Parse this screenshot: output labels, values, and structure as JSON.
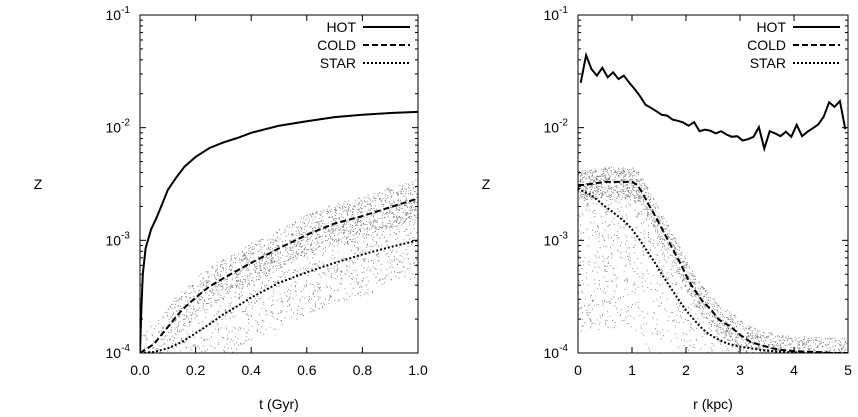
{
  "chart_data": [
    {
      "type": "line",
      "xlabel": "t (Gyr)",
      "ylabel": "Z",
      "xlim": [
        0.0,
        1.0
      ],
      "ylim": [
        0.0001,
        0.1
      ],
      "yscale": "log",
      "grid": false,
      "legend": "top-right",
      "xticks": [
        "0.0",
        "0.2",
        "0.4",
        "0.6",
        "0.8",
        "1.0"
      ],
      "yticks": [
        {
          "value": 0.1,
          "mantissa": "10",
          "exponent": "-1"
        },
        {
          "value": 0.01,
          "mantissa": "10",
          "exponent": "-2"
        },
        {
          "value": 0.001,
          "mantissa": "10",
          "exponent": "-3"
        },
        {
          "value": 0.0001,
          "mantissa": "10",
          "exponent": "-4"
        }
      ],
      "series": [
        {
          "name": "HOT",
          "style": "solid",
          "x": [
            0.0,
            0.005,
            0.01,
            0.02,
            0.04,
            0.06,
            0.08,
            0.1,
            0.13,
            0.16,
            0.2,
            0.25,
            0.3,
            0.35,
            0.4,
            0.5,
            0.6,
            0.7,
            0.8,
            0.9,
            1.0
          ],
          "y": [
            0.0001,
            0.00025,
            0.0005,
            0.00085,
            0.00125,
            0.0016,
            0.0021,
            0.0028,
            0.0036,
            0.0045,
            0.0055,
            0.0066,
            0.0074,
            0.0081,
            0.009,
            0.0104,
            0.0114,
            0.0124,
            0.013,
            0.0135,
            0.0138
          ]
        },
        {
          "name": "COLD",
          "style": "dashed",
          "x": [
            0.0,
            0.05,
            0.1,
            0.15,
            0.2,
            0.25,
            0.3,
            0.35,
            0.4,
            0.5,
            0.6,
            0.7,
            0.8,
            0.9,
            1.0
          ],
          "y": [
            0.0001,
            0.00012,
            0.00017,
            0.00024,
            0.00031,
            0.00039,
            0.00046,
            0.00054,
            0.00063,
            0.00085,
            0.00112,
            0.00141,
            0.00164,
            0.00197,
            0.00235
          ]
        },
        {
          "name": "STAR",
          "style": "dotted",
          "x": [
            0.0,
            0.05,
            0.1,
            0.15,
            0.2,
            0.25,
            0.3,
            0.35,
            0.4,
            0.5,
            0.6,
            0.7,
            0.8,
            0.9,
            1.0
          ],
          "y": [
            0.0001,
            0.000102,
            0.00011,
            0.000125,
            0.00015,
            0.00018,
            0.00022,
            0.00026,
            0.00031,
            0.00042,
            0.00052,
            0.00063,
            0.00075,
            0.00087,
            0.001
          ]
        }
      ],
      "scatter_band": {
        "name": "particles",
        "trend": "COLD",
        "upper_offset_dex": 0.2,
        "lower_offset_dex": -0.7
      }
    },
    {
      "type": "line",
      "xlabel": "r (kpc)",
      "ylabel": "Z",
      "xlim": [
        0,
        5
      ],
      "ylim": [
        0.0001,
        0.1
      ],
      "yscale": "log",
      "grid": false,
      "legend": "top-right",
      "xticks": [
        "0",
        "1",
        "2",
        "3",
        "4",
        "5"
      ],
      "yticks": [
        {
          "value": 0.1,
          "mantissa": "10",
          "exponent": "-1"
        },
        {
          "value": 0.01,
          "mantissa": "10",
          "exponent": "-2"
        },
        {
          "value": 0.001,
          "mantissa": "10",
          "exponent": "-3"
        },
        {
          "value": 0.0001,
          "mantissa": "10",
          "exponent": "-4"
        }
      ],
      "series": [
        {
          "name": "HOT",
          "style": "solid",
          "x": [
            0.05,
            0.15,
            0.25,
            0.35,
            0.45,
            0.55,
            0.65,
            0.75,
            0.85,
            0.95,
            1.05,
            1.15,
            1.25,
            1.35,
            1.45,
            1.55,
            1.65,
            1.75,
            1.85,
            1.95,
            2.05,
            2.15,
            2.25,
            2.35,
            2.45,
            2.55,
            2.65,
            2.75,
            2.85,
            2.95,
            3.05,
            3.15,
            3.25,
            3.35,
            3.45,
            3.55,
            3.65,
            3.75,
            3.85,
            3.95,
            4.05,
            4.15,
            4.25,
            4.35,
            4.45,
            4.55,
            4.65,
            4.75,
            4.85,
            4.95
          ],
          "y": [
            0.025,
            0.044,
            0.033,
            0.029,
            0.034,
            0.028,
            0.031,
            0.027,
            0.029,
            0.025,
            0.022,
            0.019,
            0.016,
            0.015,
            0.014,
            0.013,
            0.0128,
            0.0118,
            0.0115,
            0.0111,
            0.0104,
            0.0112,
            0.0093,
            0.0096,
            0.0094,
            0.0089,
            0.0093,
            0.0087,
            0.0083,
            0.0084,
            0.0077,
            0.0079,
            0.0083,
            0.0101,
            0.0065,
            0.0093,
            0.0089,
            0.0084,
            0.0092,
            0.0083,
            0.0106,
            0.0084,
            0.0092,
            0.0099,
            0.0107,
            0.0125,
            0.0168,
            0.0153,
            0.0172,
            0.0097
          ]
        },
        {
          "name": "COLD",
          "style": "dashed",
          "x": [
            0.0,
            0.1,
            0.3,
            0.5,
            0.7,
            0.9,
            1.0,
            1.1,
            1.2,
            1.3,
            1.4,
            1.5,
            1.6,
            1.7,
            1.8,
            1.9,
            2.0,
            2.1,
            2.2,
            2.3,
            2.4,
            2.5,
            2.6,
            2.7,
            2.8,
            2.9,
            3.0,
            3.2,
            3.4,
            3.6,
            3.8,
            4.0,
            4.2,
            4.4,
            4.6,
            4.8,
            5.0
          ],
          "y": [
            0.0031,
            0.0031,
            0.0032,
            0.0033,
            0.0033,
            0.0033,
            0.0033,
            0.0031,
            0.0026,
            0.0021,
            0.00175,
            0.00142,
            0.00115,
            0.00094,
            0.00076,
            0.00062,
            0.00049,
            0.0004,
            0.00034,
            0.00029,
            0.00026,
            0.00023,
            0.0002,
            0.000185,
            0.000175,
            0.00016,
            0.000145,
            0.000125,
            0.000117,
            0.00011,
            0.000106,
            0.000104,
            0.000103,
            0.000102,
            0.000101,
            0.0001,
            0.0001
          ]
        },
        {
          "name": "STAR",
          "style": "dotted",
          "x": [
            0.0,
            0.1,
            0.2,
            0.3,
            0.4,
            0.5,
            0.6,
            0.7,
            0.8,
            0.9,
            1.0,
            1.1,
            1.2,
            1.3,
            1.4,
            1.5,
            1.6,
            1.7,
            1.8,
            1.9,
            2.0,
            2.1,
            2.2,
            2.3,
            2.4,
            2.5,
            2.6,
            2.7,
            2.8,
            2.9,
            3.0,
            3.2,
            3.4,
            3.6,
            3.8,
            4.0,
            4.5,
            5.0
          ],
          "y": [
            0.0029,
            0.0027,
            0.0026,
            0.0024,
            0.0022,
            0.002,
            0.00185,
            0.0017,
            0.00155,
            0.00142,
            0.00125,
            0.00108,
            0.00092,
            0.00078,
            0.00066,
            0.00055,
            0.00046,
            0.00039,
            0.00033,
            0.00028,
            0.00024,
            0.00021,
            0.000185,
            0.000165,
            0.00015,
            0.00014,
            0.000132,
            0.000125,
            0.00012,
            0.000117,
            0.000114,
            0.00011,
            0.000106,
            0.000104,
            0.000102,
            0.000101,
            0.0001,
            0.0001
          ]
        }
      ],
      "scatter_band": {
        "name": "particles",
        "trend": "COLD",
        "upper_offset_dex": 0.15,
        "lower_offset_dex": -1.3
      }
    }
  ]
}
